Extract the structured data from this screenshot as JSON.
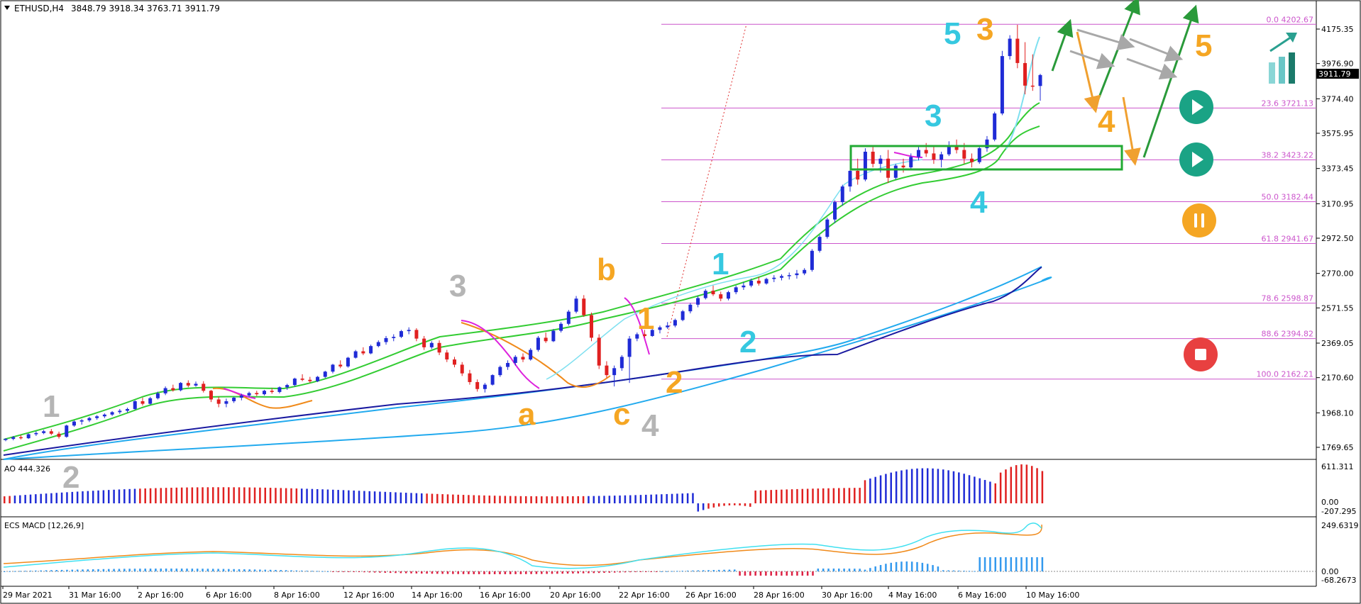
{
  "header": {
    "symbol": "ETHUSD,H4",
    "ohlc": "3848.79 3918.34 3763.71 3911.79"
  },
  "chart_data": {
    "type": "candlestick",
    "symbol": "ETHUSD",
    "timeframe": "H4",
    "y_ticks": [
      "4175.35",
      "3976.90",
      "3774.40",
      "3575.95",
      "3373.45",
      "3170.95",
      "2972.50",
      "2770.00",
      "2571.55",
      "2369.05",
      "2170.60",
      "1968.10",
      "1769.65"
    ],
    "current_price": "3911.79",
    "x_labels": [
      "29 Mar 2021",
      "31 Mar 16:00",
      "2 Apr 16:00",
      "6 Apr 16:00",
      "8 Apr 16:00",
      "12 Apr 16:00",
      "14 Apr 16:00",
      "16 Apr 16:00",
      "20 Apr 16:00",
      "22 Apr 16:00",
      "26 Apr 16:00",
      "28 Apr 16:00",
      "30 Apr 16:00",
      "4 May 16:00",
      "6 May 16:00",
      "10 May 16:00"
    ],
    "fib_levels": [
      {
        "label": "0.0 4202.67",
        "price": 4202.67
      },
      {
        "label": "23.6 3721.13",
        "price": 3721.13
      },
      {
        "label": "38.2 3423.22",
        "price": 3423.22
      },
      {
        "label": "50.0 3182.44",
        "price": 3182.44
      },
      {
        "label": "61.8 2941.67",
        "price": 2941.67
      },
      {
        "label": "78.6 2598.87",
        "price": 2598.87
      },
      {
        "label": "88.6 2394.82",
        "price": 2394.82
      },
      {
        "label": "100.0 2162.21",
        "price": 2162.21
      }
    ],
    "candles": [
      [
        1812,
        1822,
        1805,
        1818
      ],
      [
        1818,
        1835,
        1810,
        1828
      ],
      [
        1828,
        1840,
        1815,
        1822
      ],
      [
        1822,
        1850,
        1818,
        1845
      ],
      [
        1845,
        1862,
        1835,
        1852
      ],
      [
        1852,
        1870,
        1845,
        1862
      ],
      [
        1862,
        1875,
        1840,
        1848
      ],
      [
        1848,
        1860,
        1820,
        1830
      ],
      [
        1830,
        1900,
        1825,
        1895
      ],
      [
        1895,
        1925,
        1888,
        1918
      ],
      [
        1918,
        1932,
        1900,
        1925
      ],
      [
        1925,
        1945,
        1915,
        1938
      ],
      [
        1938,
        1955,
        1928,
        1948
      ],
      [
        1948,
        1965,
        1938,
        1958
      ],
      [
        1958,
        1978,
        1950,
        1972
      ],
      [
        1972,
        1990,
        1962,
        1980
      ],
      [
        1980,
        1998,
        1970,
        1990
      ],
      [
        1990,
        2040,
        1985,
        2035
      ],
      [
        2035,
        2055,
        2010,
        2020
      ],
      [
        2020,
        2060,
        2015,
        2052
      ],
      [
        2052,
        2090,
        2045,
        2080
      ],
      [
        2080,
        2120,
        2070,
        2110
      ],
      [
        2110,
        2130,
        2090,
        2098
      ],
      [
        2098,
        2145,
        2092,
        2140
      ],
      [
        2140,
        2155,
        2115,
        2125
      ],
      [
        2125,
        2148,
        2118,
        2135
      ],
      [
        2135,
        2150,
        2085,
        2095
      ],
      [
        2095,
        2100,
        2030,
        2045
      ],
      [
        2045,
        2060,
        2000,
        2020
      ],
      [
        2020,
        2050,
        2000,
        2035
      ],
      [
        2035,
        2060,
        2025,
        2055
      ],
      [
        2055,
        2078,
        2040,
        2068
      ],
      [
        2068,
        2090,
        2060,
        2082
      ],
      [
        2082,
        2095,
        2065,
        2075
      ],
      [
        2075,
        2100,
        2068,
        2095
      ],
      [
        2095,
        2110,
        2078,
        2088
      ],
      [
        2088,
        2120,
        2080,
        2115
      ],
      [
        2115,
        2135,
        2100,
        2128
      ],
      [
        2128,
        2170,
        2120,
        2165
      ],
      [
        2165,
        2190,
        2150,
        2158
      ],
      [
        2158,
        2175,
        2140,
        2150
      ],
      [
        2150,
        2180,
        2145,
        2175
      ],
      [
        2175,
        2210,
        2168,
        2205
      ],
      [
        2205,
        2250,
        2195,
        2245
      ],
      [
        2245,
        2270,
        2225,
        2235
      ],
      [
        2235,
        2290,
        2228,
        2285
      ],
      [
        2285,
        2330,
        2280,
        2322
      ],
      [
        2322,
        2345,
        2300,
        2310
      ],
      [
        2310,
        2360,
        2305,
        2352
      ],
      [
        2352,
        2385,
        2345,
        2375
      ],
      [
        2375,
        2410,
        2360,
        2398
      ],
      [
        2398,
        2420,
        2380,
        2405
      ],
      [
        2405,
        2445,
        2398,
        2438
      ],
      [
        2438,
        2460,
        2420,
        2445
      ],
      [
        2445,
        2455,
        2380,
        2395
      ],
      [
        2395,
        2410,
        2330,
        2345
      ],
      [
        2345,
        2380,
        2335,
        2370
      ],
      [
        2370,
        2385,
        2300,
        2315
      ],
      [
        2315,
        2330,
        2260,
        2275
      ],
      [
        2275,
        2290,
        2230,
        2245
      ],
      [
        2245,
        2260,
        2180,
        2195
      ],
      [
        2195,
        2215,
        2130,
        2145
      ],
      [
        2145,
        2160,
        2090,
        2105
      ],
      [
        2105,
        2140,
        2085,
        2130
      ],
      [
        2130,
        2190,
        2125,
        2185
      ],
      [
        2185,
        2240,
        2175,
        2232
      ],
      [
        2232,
        2270,
        2215,
        2255
      ],
      [
        2255,
        2300,
        2240,
        2290
      ],
      [
        2290,
        2310,
        2260,
        2275
      ],
      [
        2275,
        2340,
        2268,
        2330
      ],
      [
        2330,
        2410,
        2320,
        2400
      ],
      [
        2400,
        2430,
        2370,
        2380
      ],
      [
        2380,
        2450,
        2375,
        2440
      ],
      [
        2440,
        2490,
        2430,
        2480
      ],
      [
        2480,
        2560,
        2470,
        2550
      ],
      [
        2550,
        2640,
        2540,
        2625
      ],
      [
        2625,
        2645,
        2520,
        2530
      ],
      [
        2530,
        2545,
        2380,
        2400
      ],
      [
        2400,
        2420,
        2220,
        2240
      ],
      [
        2240,
        2265,
        2170,
        2185
      ],
      [
        2185,
        2240,
        2120,
        2225
      ],
      [
        2225,
        2300,
        2210,
        2290
      ],
      [
        2290,
        2410,
        2140,
        2395
      ],
      [
        2395,
        2430,
        2380,
        2420
      ],
      [
        2420,
        2445,
        2400,
        2410
      ],
      [
        2410,
        2450,
        2405,
        2445
      ],
      [
        2445,
        2470,
        2425,
        2460
      ],
      [
        2460,
        2490,
        2450,
        2470
      ],
      [
        2470,
        2510,
        2460,
        2502
      ],
      [
        2502,
        2560,
        2495,
        2552
      ],
      [
        2552,
        2600,
        2540,
        2590
      ],
      [
        2590,
        2640,
        2575,
        2628
      ],
      [
        2628,
        2680,
        2620,
        2670
      ],
      [
        2670,
        2700,
        2640,
        2650
      ],
      [
        2650,
        2665,
        2610,
        2625
      ],
      [
        2625,
        2670,
        2615,
        2662
      ],
      [
        2662,
        2700,
        2650,
        2690
      ],
      [
        2690,
        2720,
        2675,
        2700
      ],
      [
        2700,
        2740,
        2690,
        2728
      ],
      [
        2728,
        2750,
        2700,
        2712
      ],
      [
        2712,
        2745,
        2705,
        2738
      ],
      [
        2738,
        2760,
        2720,
        2745
      ],
      [
        2745,
        2765,
        2730,
        2755
      ],
      [
        2755,
        2775,
        2735,
        2760
      ],
      [
        2760,
        2790,
        2740,
        2770
      ],
      [
        2770,
        2800,
        2760,
        2790
      ],
      [
        2790,
        2910,
        2780,
        2900
      ],
      [
        2900,
        2990,
        2890,
        2980
      ],
      [
        2980,
        3090,
        2970,
        3080
      ],
      [
        3080,
        3190,
        3060,
        3180
      ],
      [
        3180,
        3280,
        3160,
        3270
      ],
      [
        3270,
        3390,
        3240,
        3360
      ],
      [
        3360,
        3430,
        3280,
        3310
      ],
      [
        3310,
        3490,
        3300,
        3470
      ],
      [
        3470,
        3500,
        3380,
        3400
      ],
      [
        3400,
        3450,
        3350,
        3430
      ],
      [
        3430,
        3480,
        3290,
        3320
      ],
      [
        3320,
        3400,
        3310,
        3390
      ],
      [
        3390,
        3430,
        3350,
        3380
      ],
      [
        3380,
        3460,
        3370,
        3440
      ],
      [
        3440,
        3500,
        3420,
        3480
      ],
      [
        3480,
        3520,
        3440,
        3460
      ],
      [
        3460,
        3500,
        3400,
        3425
      ],
      [
        3425,
        3470,
        3380,
        3455
      ],
      [
        3455,
        3530,
        3445,
        3500
      ],
      [
        3500,
        3540,
        3460,
        3480
      ],
      [
        3480,
        3520,
        3400,
        3430
      ],
      [
        3430,
        3460,
        3380,
        3410
      ],
      [
        3410,
        3500,
        3400,
        3490
      ],
      [
        3490,
        3560,
        3470,
        3540
      ],
      [
        3540,
        3700,
        3530,
        3690
      ],
      [
        3690,
        4050,
        3680,
        4020
      ],
      [
        4020,
        4140,
        4000,
        4120
      ],
      [
        4120,
        4200,
        3950,
        3980
      ],
      [
        3980,
        4100,
        3800,
        3850
      ],
      [
        3850,
        4030,
        3820,
        3848
      ],
      [
        3848,
        3918,
        3763,
        3911
      ]
    ],
    "wave_labels": [
      {
        "text": "1",
        "color": "gray"
      },
      {
        "text": "2",
        "color": "gray"
      },
      {
        "text": "3",
        "color": "gray"
      },
      {
        "text": "4",
        "color": "gray"
      },
      {
        "text": "a",
        "color": "orange"
      },
      {
        "text": "b",
        "color": "orange"
      },
      {
        "text": "c",
        "color": "orange"
      },
      {
        "text": "1",
        "color": "orange"
      },
      {
        "text": "2",
        "color": "orange"
      },
      {
        "text": "3",
        "color": "orange"
      },
      {
        "text": "4",
        "color": "orange"
      },
      {
        "text": "5",
        "color": "orange"
      },
      {
        "text": "1",
        "color": "cyan"
      },
      {
        "text": "2",
        "color": "cyan"
      },
      {
        "text": "3",
        "color": "cyan"
      },
      {
        "text": "4",
        "color": "cyan"
      },
      {
        "text": "5",
        "color": "cyan"
      }
    ],
    "ao": {
      "label": "AO 444.326",
      "ticks": [
        "611.311",
        "0.00",
        "-207.295"
      ]
    },
    "macd": {
      "label": "ECS MACD [12,26,9]",
      "ticks": [
        "249.6319",
        "0.00",
        "-68.2673"
      ]
    },
    "colors": {
      "bull": "#1f2bd6",
      "bear": "#e02020",
      "fib": "#cc55cc",
      "ma_fast": "#7fe0f0",
      "ma_green": "#33cc33",
      "ma_navy": "#1a1aa0",
      "ma_blue": "#22aaee",
      "ma_orange": "#f08a1a",
      "ma_magenta": "#dd22dd",
      "box": "#22aa33"
    }
  }
}
